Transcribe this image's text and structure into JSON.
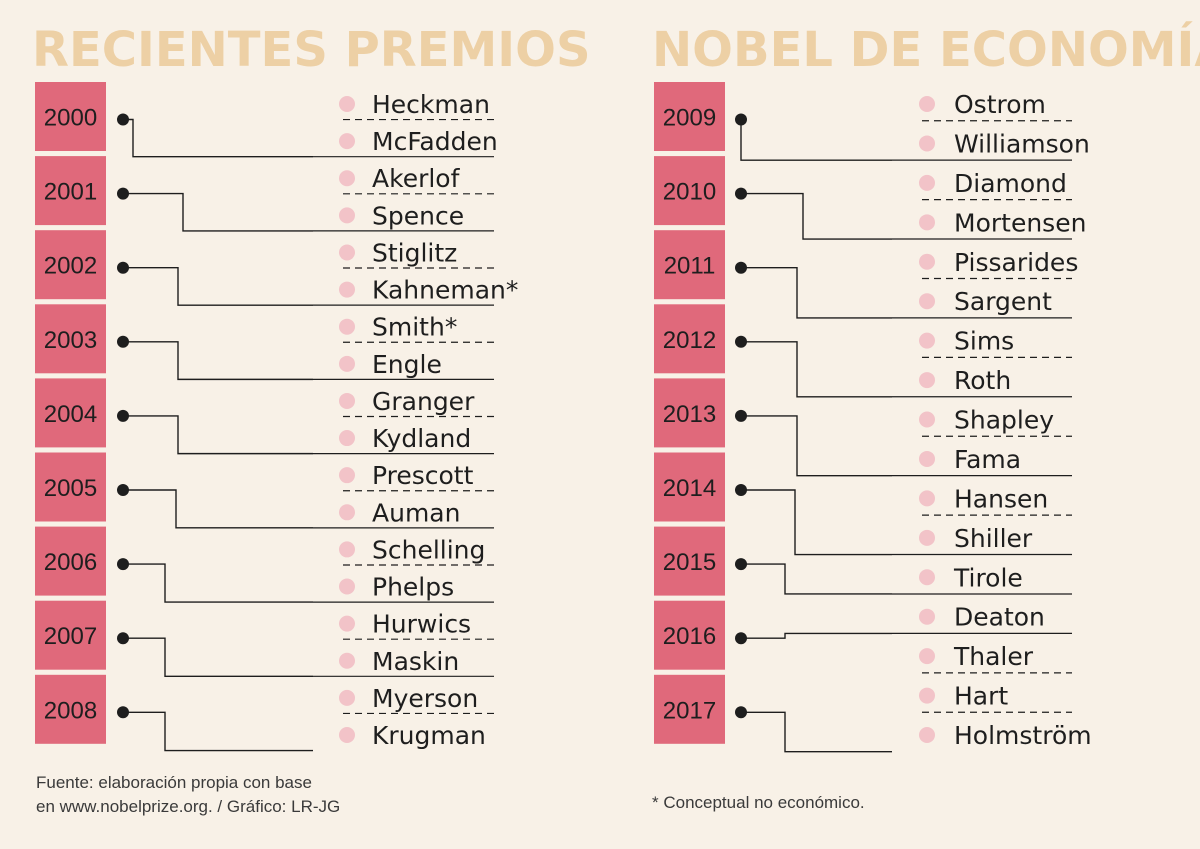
{
  "title_left": "RECIENTES PREMIOS",
  "title_right": "NOBEL DE ECONOMÍA",
  "source_line1": "Fuente: elaboración propia con base",
  "source_line2": "en www.nobelprize.org. / Gráfico: LR-JG",
  "note": "* Conceptual no económico.",
  "colors": {
    "background": "#f8f1e7",
    "title": "#edd0a5",
    "year_box": "#e0697b",
    "name_dot": "#f2c3c8",
    "line": "#1e1e1e"
  },
  "columns": [
    {
      "years": [
        {
          "year": "2000",
          "laureates": [
            "Heckman",
            "McFadden"
          ]
        },
        {
          "year": "2001",
          "laureates": [
            "Akerlof",
            "Spence"
          ]
        },
        {
          "year": "2002",
          "laureates": [
            "Stiglitz",
            "Kahneman*"
          ]
        },
        {
          "year": "2003",
          "laureates": [
            "Smith*",
            "Engle"
          ]
        },
        {
          "year": "2004",
          "laureates": [
            "Granger",
            "Kydland"
          ]
        },
        {
          "year": "2005",
          "laureates": [
            "Prescott",
            "Auman"
          ]
        },
        {
          "year": "2006",
          "laureates": [
            "Schelling",
            "Phelps"
          ]
        },
        {
          "year": "2007",
          "laureates": [
            "Hurwics",
            "Maskin"
          ]
        },
        {
          "year": "2008",
          "laureates": [
            "Myerson",
            "Krugman"
          ]
        }
      ]
    },
    {
      "years": [
        {
          "year": "2009",
          "laureates": [
            "Ostrom",
            "Williamson"
          ]
        },
        {
          "year": "2010",
          "laureates": [
            "Diamond",
            "Mortensen"
          ]
        },
        {
          "year": "2011",
          "laureates": [
            "Pissarides",
            "Sargent"
          ]
        },
        {
          "year": "2012",
          "laureates": [
            "Sims",
            "Roth"
          ]
        },
        {
          "year": "2013",
          "laureates": [
            "Shapley",
            "Fama"
          ]
        },
        {
          "year": "2014",
          "laureates": [
            "Hansen",
            "Shiller"
          ]
        },
        {
          "year": "2015",
          "laureates": [
            "Tirole"
          ]
        },
        {
          "year": "2016",
          "laureates": [
            "Deaton"
          ]
        },
        {
          "year": "2017",
          "laureates": [
            "Thaler",
            "Hart",
            "Holmström"
          ]
        }
      ]
    }
  ]
}
